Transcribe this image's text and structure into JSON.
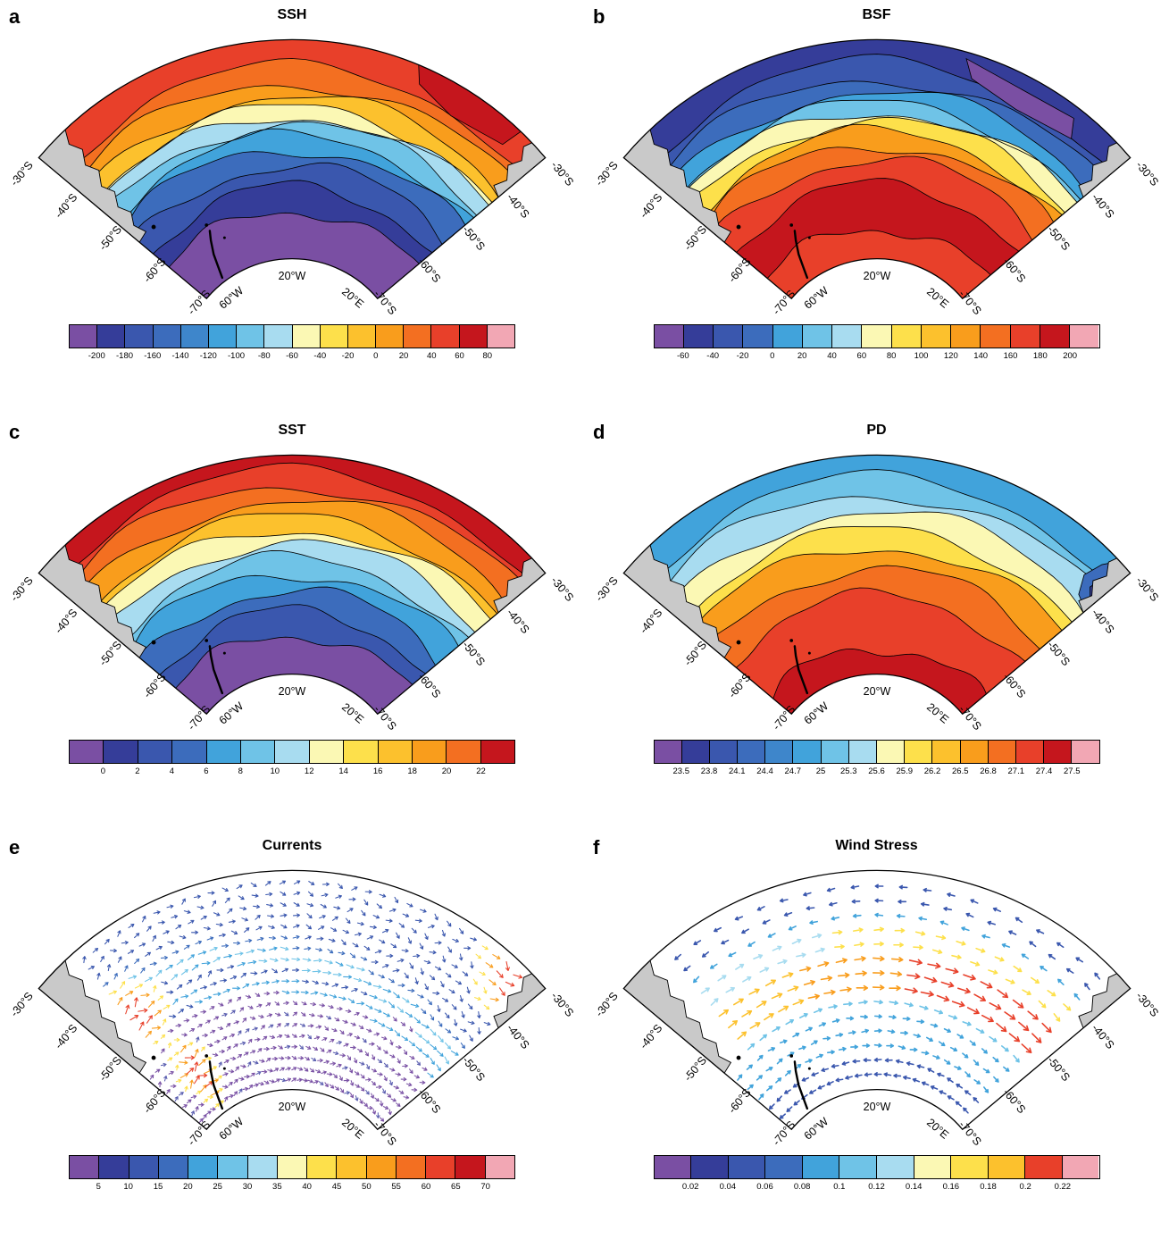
{
  "map_labels": {
    "lat_left": [
      "-30°S",
      "-40°S",
      "-50°S",
      "-60°S",
      "-70°S"
    ],
    "lat_right": [
      "-30°S",
      "-40°S",
      "-50°S",
      "-60°S",
      "-70°S"
    ],
    "lon": [
      "60°W",
      "20°W",
      "20°E"
    ]
  },
  "panels": [
    {
      "letter": "a",
      "title": "SSH",
      "map_type": "contour",
      "bands": {
        "stops": [
          1,
          0.88,
          0.8,
          0.74,
          0.69,
          0.65,
          0.61,
          0.56,
          0.5,
          0.42,
          0.33,
          0.22,
          0
        ],
        "colors": [
          "#E8402A",
          "#F36F21",
          "#F99D1C",
          "#FCC12D",
          "#FBF8B4",
          "#A8DCF0",
          "#6FC3E7",
          "#41A3DB",
          "#3C6CBC",
          "#3A57AE",
          "#353D99",
          "#7A4FA3"
        ]
      },
      "colorbar": {
        "colors": [
          "#7A4FA3",
          "#353D99",
          "#3A57AE",
          "#3C6CBC",
          "#3E86CB",
          "#41A3DB",
          "#6FC3E7",
          "#A8DCF0",
          "#FBF8B4",
          "#FDE04B",
          "#FCC12D",
          "#F99D1C",
          "#F36F21",
          "#E8402A",
          "#C5161D",
          "#F2A7B4"
        ],
        "ticks": [
          "-200",
          "-180",
          "-160",
          "-140",
          "-120",
          "-100",
          "-80",
          "-60",
          "-40",
          "-20",
          "0",
          "20",
          "40",
          "60",
          "80"
        ]
      }
    },
    {
      "letter": "b",
      "title": "BSF",
      "map_type": "contour",
      "bands": {
        "stops": [
          1,
          0.9,
          0.82,
          0.76,
          0.71,
          0.67,
          0.63,
          0.58,
          0.52,
          0.45,
          0.34,
          0.14,
          0
        ],
        "colors": [
          "#353D99",
          "#3A57AE",
          "#3C6CBC",
          "#41A3DB",
          "#6FC3E7",
          "#FBF8B4",
          "#FDE04B",
          "#F99D1C",
          "#F36F21",
          "#E8402A",
          "#C5161D",
          "#E8402A"
        ]
      },
      "colorbar": {
        "colors": [
          "#7A4FA3",
          "#353D99",
          "#3A57AE",
          "#3C6CBC",
          "#41A3DB",
          "#6FC3E7",
          "#A8DCF0",
          "#FBF8B4",
          "#FDE04B",
          "#FCC12D",
          "#F99D1C",
          "#F36F21",
          "#E8402A",
          "#C5161D",
          "#F2A7B4"
        ],
        "ticks": [
          "-60",
          "-40",
          "-20",
          "0",
          "20",
          "40",
          "60",
          "80",
          "100",
          "120",
          "140",
          "160",
          "180",
          "200"
        ]
      }
    },
    {
      "letter": "c",
      "title": "SST",
      "map_type": "contour",
      "bands": {
        "stops": [
          1,
          0.93,
          0.86,
          0.79,
          0.72,
          0.66,
          0.6,
          0.53,
          0.46,
          0.38,
          0.29,
          0.18,
          0
        ],
        "colors": [
          "#C5161D",
          "#E8402A",
          "#F36F21",
          "#F99D1C",
          "#FCC12D",
          "#FBF8B4",
          "#A8DCF0",
          "#6FC3E7",
          "#41A3DB",
          "#3C6CBC",
          "#3A57AE",
          "#7A4FA3"
        ]
      },
      "colorbar": {
        "colors": [
          "#7A4FA3",
          "#353D99",
          "#3A57AE",
          "#3C6CBC",
          "#41A3DB",
          "#6FC3E7",
          "#A8DCF0",
          "#FBF8B4",
          "#FDE04B",
          "#FCC12D",
          "#F99D1C",
          "#F36F21",
          "#C5161D"
        ],
        "ticks": [
          "0",
          "2",
          "4",
          "6",
          "8",
          "10",
          "12",
          "14",
          "16",
          "18",
          "20",
          "22"
        ]
      }
    },
    {
      "letter": "d",
      "title": "PD",
      "map_type": "contour",
      "bands": {
        "stops": [
          1,
          0.9,
          0.82,
          0.74,
          0.66,
          0.58,
          0.48,
          0.36,
          0.12,
          0
        ],
        "colors": [
          "#41A3DB",
          "#6FC3E7",
          "#A8DCF0",
          "#FBF8B4",
          "#FDE04B",
          "#F99D1C",
          "#F36F21",
          "#E8402A",
          "#C5161D"
        ]
      },
      "colorbar": {
        "colors": [
          "#7A4FA3",
          "#353D99",
          "#3A57AE",
          "#3C6CBC",
          "#3E86CB",
          "#41A3DB",
          "#6FC3E7",
          "#A8DCF0",
          "#FBF8B4",
          "#FDE04B",
          "#FCC12D",
          "#F99D1C",
          "#F36F21",
          "#E8402A",
          "#C5161D",
          "#F2A7B4"
        ],
        "ticks": [
          "23.5",
          "23.8",
          "24.1",
          "24.4",
          "24.7",
          "25",
          "25.3",
          "25.6",
          "25.9",
          "26.2",
          "26.5",
          "26.8",
          "27.1",
          "27.4",
          "27.5"
        ]
      }
    },
    {
      "letter": "e",
      "title": "Currents",
      "map_type": "quiver",
      "quiver_kind": "currents",
      "colorbar": {
        "colors": [
          "#7A4FA3",
          "#353D99",
          "#3A57AE",
          "#3C6CBC",
          "#41A3DB",
          "#6FC3E7",
          "#A8DCF0",
          "#FBF8B4",
          "#FDE04B",
          "#FCC12D",
          "#F99D1C",
          "#F36F21",
          "#E8402A",
          "#C5161D",
          "#F2A7B4"
        ],
        "ticks": [
          "5",
          "10",
          "15",
          "20",
          "25",
          "30",
          "35",
          "40",
          "45",
          "50",
          "55",
          "60",
          "65",
          "70"
        ]
      }
    },
    {
      "letter": "f",
      "title": "Wind Stress",
      "map_type": "quiver",
      "quiver_kind": "wind",
      "colorbar": {
        "colors": [
          "#7A4FA3",
          "#353D99",
          "#3A57AE",
          "#3C6CBC",
          "#41A3DB",
          "#6FC3E7",
          "#A8DCF0",
          "#FBF8B4",
          "#FDE04B",
          "#FCC12D",
          "#E8402A",
          "#F2A7B4"
        ],
        "ticks": [
          "0.02",
          "0.04",
          "0.06",
          "0.08",
          "0.1",
          "0.12",
          "0.14",
          "0.16",
          "0.18",
          "0.2",
          "0.22"
        ]
      }
    }
  ],
  "chart_data": [
    {
      "panel": "a",
      "type": "heatmap",
      "subtype": "filled-contour polar sector map",
      "title": "SSH",
      "region": "South Atlantic / Southern Ocean sector",
      "lat_ticks": [
        "-30°S",
        "-40°S",
        "-50°S",
        "-60°S",
        "-70°S"
      ],
      "lon_ticks": [
        "60°W",
        "20°W",
        "20°E"
      ],
      "levels": [
        -200,
        -180,
        -160,
        -140,
        -120,
        -100,
        -80,
        -60,
        -40,
        -20,
        0,
        20,
        40,
        60,
        80
      ],
      "pattern": "High SSH (red/orange, ~40-80) across the subtropical north, decreasing southward through yellow and cyan bands to a broad minimum (dark blue/purple, ~-160 to -200) in the south-central and southeastern interior"
    },
    {
      "panel": "b",
      "type": "heatmap",
      "subtype": "filled-contour polar sector map",
      "title": "BSF",
      "region": "South Atlantic / Southern Ocean sector",
      "lat_ticks": [
        "-30°S",
        "-40°S",
        "-50°S",
        "-60°S",
        "-70°S"
      ],
      "lon_ticks": [
        "60°W",
        "20°W",
        "20°E"
      ],
      "levels": [
        -60,
        -40,
        -20,
        0,
        20,
        40,
        60,
        80,
        100,
        120,
        140,
        160,
        180,
        200
      ],
      "pattern": "Negative/low streamfunction (blue, with a purple patch in the northeast) in the subtropical north, steep gradient mid-basin, maximum (dark red, ~160-200) in the broad southern gyre interior"
    },
    {
      "panel": "c",
      "type": "heatmap",
      "subtype": "filled-contour polar sector map",
      "title": "SST",
      "region": "South Atlantic / Southern Ocean sector",
      "lat_ticks": [
        "-30°S",
        "-40°S",
        "-50°S",
        "-60°S",
        "-70°S"
      ],
      "lon_ticks": [
        "60°W",
        "20°W",
        "20°E"
      ],
      "levels": [
        0,
        2,
        4,
        6,
        8,
        10,
        12,
        14,
        16,
        18,
        20,
        22
      ],
      "pattern": "Warm SST (~20-22) along 30°S decreasing monotonically southward in zonal bands to ~0-2 (purple) near 70°S"
    },
    {
      "panel": "d",
      "type": "heatmap",
      "subtype": "filled-contour polar sector map",
      "title": "PD",
      "region": "South Atlantic / Southern Ocean sector",
      "lat_ticks": [
        "-30°S",
        "-40°S",
        "-50°S",
        "-60°S",
        "-70°S"
      ],
      "lon_ticks": [
        "60°W",
        "20°W",
        "20°E"
      ],
      "levels": [
        23.5,
        23.8,
        24.1,
        24.4,
        24.7,
        25,
        25.3,
        25.6,
        25.9,
        26.2,
        26.5,
        26.8,
        27.1,
        27.4,
        27.5
      ],
      "pattern": "Light surface water (cyan/blue, ~24.4-25.3) in the subtropical north, increasing density southward to ~27.1-27.5 (dark red) toward 60-70°S, with a small dense blue patch at the northeast corner"
    },
    {
      "panel": "e",
      "type": "scatter",
      "subtype": "quiver vector map",
      "title": "Currents",
      "region": "South Atlantic / Southern Ocean sector",
      "lat_ticks": [
        "-30°S",
        "-40°S",
        "-50°S",
        "-60°S",
        "-70°S"
      ],
      "lon_ticks": [
        "60°W",
        "20°W",
        "20°E"
      ],
      "speed_levels": [
        5,
        10,
        15,
        20,
        25,
        30,
        35,
        40,
        45,
        50,
        55,
        60,
        65,
        70
      ],
      "pattern": "Dense field of small vectors: predominantly eastward ACC flow with cyan jet filaments mid-basin; strongest speeds (yellow/red) at the Brazil-Malvinas confluence, near the Antarctic Peninsula and the Agulhas region; weak purple vectors over the southern interior"
    },
    {
      "panel": "f",
      "type": "scatter",
      "subtype": "quiver vector map",
      "title": "Wind Stress",
      "region": "South Atlantic / Southern Ocean sector",
      "lat_ticks": [
        "-30°S",
        "-40°S",
        "-50°S",
        "-60°S",
        "-70°S"
      ],
      "lon_ticks": [
        "60°W",
        "20°W",
        "20°E"
      ],
      "magnitude_levels": [
        0.02,
        0.04,
        0.06,
        0.08,
        0.1,
        0.12,
        0.14,
        0.16,
        0.18,
        0.2,
        0.22
      ],
      "pattern": "Westward (blue) vectors in the subtropics and near Antarctica; strong eastward westerlies (yellow-orange-red, ~0.14-0.22) in a band near 45-55°S, strongest in the eastern half"
    }
  ]
}
